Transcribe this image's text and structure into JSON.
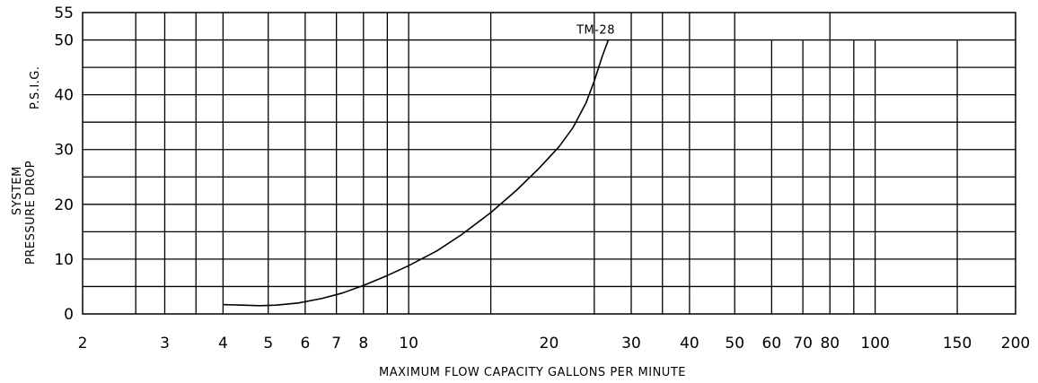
{
  "chart_data": {
    "type": "line",
    "title": "",
    "xlabel": "MAXIMUM FLOW CAPACITY GALLONS PER MINUTE",
    "ylabel_line1": "SYSTEM",
    "ylabel_line2": "PRESSURE DROP",
    "ylabel_unit": "P.S.I.G.",
    "x_scale": "log",
    "xlim": [
      2,
      200
    ],
    "ylim": [
      0,
      55
    ],
    "grid": true,
    "x_ticks": [
      {
        "value": 2,
        "label": "2"
      },
      {
        "value": 3,
        "label": "3"
      },
      {
        "value": 4,
        "label": "4"
      },
      {
        "value": 5,
        "label": "5"
      },
      {
        "value": 6,
        "label": "6"
      },
      {
        "value": 7,
        "label": "7"
      },
      {
        "value": 8,
        "label": "8"
      },
      {
        "value": 10,
        "label": "10"
      },
      {
        "value": 20,
        "label": "20"
      },
      {
        "value": 30,
        "label": "30"
      },
      {
        "value": 40,
        "label": "40"
      },
      {
        "value": 50,
        "label": "50"
      },
      {
        "value": 60,
        "label": "60"
      },
      {
        "value": 70,
        "label": "70"
      },
      {
        "value": 80,
        "label": "80"
      },
      {
        "value": 100,
        "label": "100"
      },
      {
        "value": 150,
        "label": "150"
      },
      {
        "value": 200,
        "label": "200"
      }
    ],
    "y_ticks": [
      {
        "value": 0,
        "label": "0"
      },
      {
        "value": 10,
        "label": "10"
      },
      {
        "value": 20,
        "label": "20"
      },
      {
        "value": 30,
        "label": "30"
      },
      {
        "value": 40,
        "label": "40"
      },
      {
        "value": 50,
        "label": "50"
      },
      {
        "value": 55,
        "label": "55"
      }
    ],
    "grid_y": [
      5,
      10,
      15,
      20,
      25,
      30,
      35,
      40,
      45,
      50
    ],
    "grid_x_full": [
      2.6,
      3,
      3.5,
      4,
      5,
      6,
      7,
      8,
      9,
      10,
      15,
      25,
      30,
      35,
      40,
      50,
      80
    ],
    "grid_x_partial": [
      60,
      70,
      90,
      100,
      150
    ],
    "partial_top_y": 50,
    "series": [
      {
        "name": "TM-28",
        "x": [
          4,
          4.4,
          4.8,
          5.2,
          5.8,
          6.5,
          7.2,
          8,
          9,
          10,
          11.5,
          13,
          15,
          17,
          19,
          21,
          22.5,
          24,
          25,
          26,
          26.8
        ],
        "y": [
          1.7,
          1.6,
          1.5,
          1.6,
          2.0,
          2.8,
          3.8,
          5.2,
          7.0,
          8.8,
          11.5,
          14.5,
          18.5,
          22.5,
          26.5,
          30.5,
          34,
          38.5,
          42.5,
          47,
          50
        ]
      }
    ]
  }
}
